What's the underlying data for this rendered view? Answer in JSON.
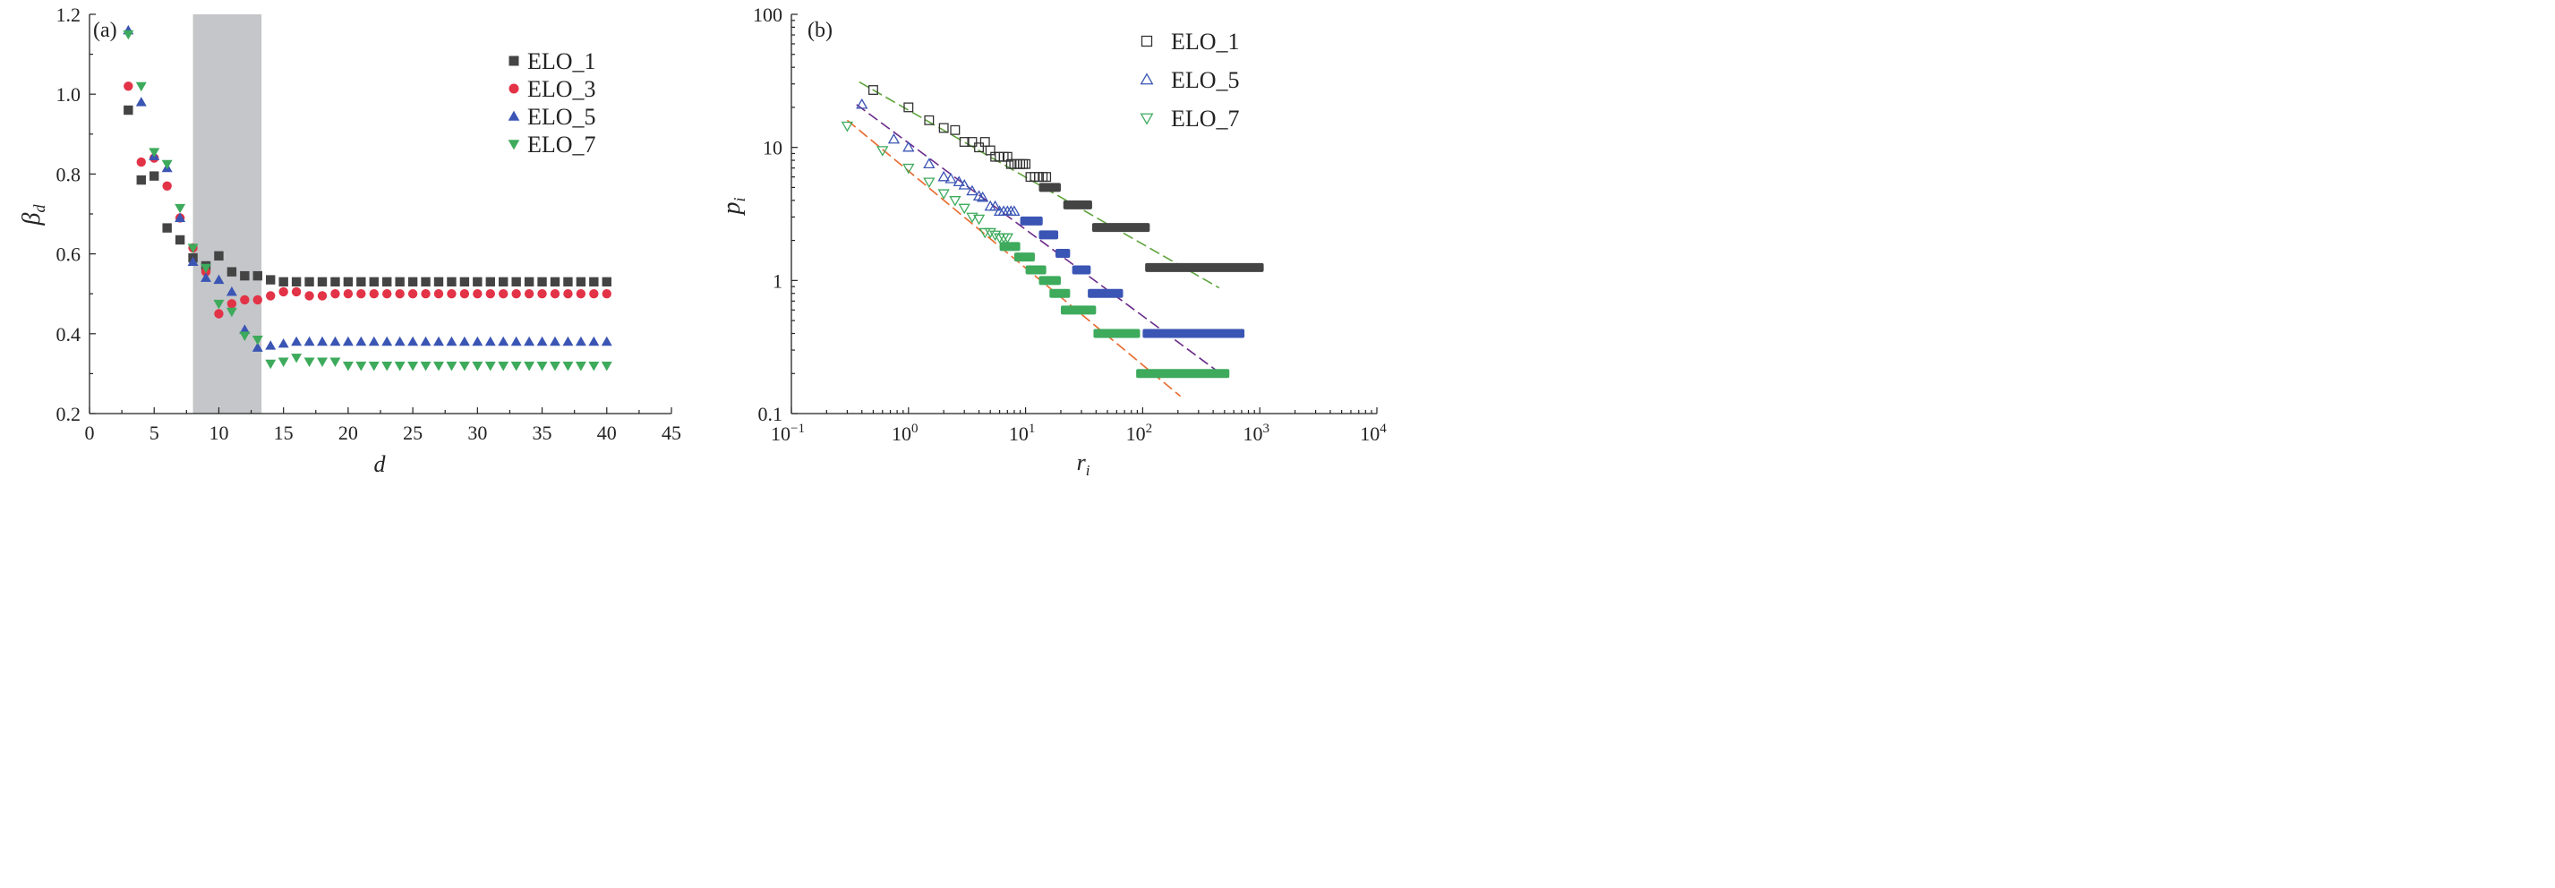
{
  "chart_data": [
    {
      "panel": "(a)",
      "type": "scatter",
      "xlabel": "d",
      "ylabel": "β_d",
      "ylabel_main": "β",
      "ylabel_sub": "d",
      "xlim": [
        0,
        45
      ],
      "ylim": [
        0.2,
        1.2
      ],
      "xticks": [
        "0",
        "5",
        "10",
        "15",
        "20",
        "25",
        "30",
        "35",
        "40",
        "45"
      ],
      "yticks": [
        "0.2",
        "0.4",
        "0.6",
        "0.8",
        "1.0",
        "1.2"
      ],
      "xtick_values": [
        0,
        5,
        10,
        15,
        20,
        25,
        30,
        35,
        40,
        45
      ],
      "ytick_values": [
        0.2,
        0.4,
        0.6,
        0.8,
        1.0,
        1.2
      ],
      "shaded_region": {
        "x": [
          8,
          13.3
        ],
        "color": "#c4c6c9"
      },
      "legend_position": "top-right",
      "grid": false,
      "series": [
        {
          "name": "ELO_1",
          "marker": "square",
          "color": "#444444",
          "x": [
            3,
            4,
            5,
            6,
            7,
            8,
            9,
            10,
            11,
            12,
            13,
            14,
            15,
            16,
            17,
            18,
            19,
            20,
            21,
            22,
            23,
            24,
            25,
            26,
            27,
            28,
            29,
            30,
            31,
            32,
            33,
            34,
            35,
            36,
            37,
            38,
            39,
            40
          ],
          "y": [
            0.96,
            0.785,
            0.795,
            0.665,
            0.635,
            0.59,
            0.57,
            0.595,
            0.555,
            0.545,
            0.545,
            0.535,
            0.53,
            0.53,
            0.53,
            0.53,
            0.53,
            0.53,
            0.53,
            0.53,
            0.53,
            0.53,
            0.53,
            0.53,
            0.53,
            0.53,
            0.53,
            0.53,
            0.53,
            0.53,
            0.53,
            0.53,
            0.53,
            0.53,
            0.53,
            0.53,
            0.53,
            0.53
          ]
        },
        {
          "name": "ELO_3",
          "marker": "circle",
          "color": "#e23347",
          "x": [
            3,
            4,
            5,
            6,
            7,
            8,
            9,
            10,
            11,
            12,
            13,
            14,
            15,
            16,
            17,
            18,
            19,
            20,
            21,
            22,
            23,
            24,
            25,
            26,
            27,
            28,
            29,
            30,
            31,
            32,
            33,
            34,
            35,
            36,
            37,
            38,
            39,
            40
          ],
          "y": [
            1.02,
            0.83,
            0.84,
            0.77,
            0.69,
            0.615,
            0.555,
            0.45,
            0.475,
            0.485,
            0.485,
            0.495,
            0.505,
            0.505,
            0.495,
            0.495,
            0.5,
            0.5,
            0.5,
            0.5,
            0.5,
            0.5,
            0.5,
            0.5,
            0.5,
            0.5,
            0.5,
            0.5,
            0.5,
            0.5,
            0.5,
            0.5,
            0.5,
            0.5,
            0.5,
            0.5,
            0.5,
            0.5
          ]
        },
        {
          "name": "ELO_5",
          "marker": "triangle-up",
          "color": "#3a55b4",
          "x": [
            3,
            4,
            5,
            6,
            7,
            8,
            9,
            10,
            11,
            12,
            13,
            14,
            15,
            16,
            17,
            18,
            19,
            20,
            21,
            22,
            23,
            24,
            25,
            26,
            27,
            28,
            29,
            30,
            31,
            32,
            33,
            34,
            35,
            36,
            37,
            38,
            39,
            40
          ],
          "y": [
            1.16,
            0.98,
            0.845,
            0.815,
            0.69,
            0.58,
            0.54,
            0.535,
            0.505,
            0.41,
            0.365,
            0.37,
            0.375,
            0.38,
            0.38,
            0.38,
            0.38,
            0.38,
            0.38,
            0.38,
            0.38,
            0.38,
            0.38,
            0.38,
            0.38,
            0.38,
            0.38,
            0.38,
            0.38,
            0.38,
            0.38,
            0.38,
            0.38,
            0.38,
            0.38,
            0.38,
            0.38,
            0.38
          ]
        },
        {
          "name": "ELO_7",
          "marker": "triangle-down",
          "color": "#3daa5c",
          "x": [
            3,
            4,
            5,
            6,
            7,
            8,
            9,
            10,
            11,
            12,
            13,
            14,
            15,
            16,
            17,
            18,
            19,
            20,
            21,
            22,
            23,
            24,
            25,
            26,
            27,
            28,
            29,
            30,
            31,
            32,
            33,
            34,
            35,
            36,
            37,
            38,
            39,
            40
          ],
          "y": [
            1.15,
            1.02,
            0.855,
            0.825,
            0.715,
            0.615,
            0.565,
            0.475,
            0.455,
            0.395,
            0.385,
            0.325,
            0.33,
            0.34,
            0.33,
            0.33,
            0.33,
            0.32,
            0.32,
            0.32,
            0.32,
            0.32,
            0.32,
            0.32,
            0.32,
            0.32,
            0.32,
            0.32,
            0.32,
            0.32,
            0.32,
            0.32,
            0.32,
            0.32,
            0.32,
            0.32,
            0.32,
            0.32
          ]
        }
      ]
    },
    {
      "panel": "(b)",
      "type": "scatter",
      "xscale": "log",
      "yscale": "log",
      "xlabel": "r_i",
      "xlabel_main": "r",
      "xlabel_sub": "i",
      "ylabel": "p_i",
      "ylabel_main": "p",
      "ylabel_sub": "i",
      "xlim": [
        0.1,
        10000
      ],
      "ylim": [
        0.1,
        100
      ],
      "xtick_values": [
        0.1,
        1,
        10,
        100,
        1000,
        10000
      ],
      "xticks": [
        {
          "base": "10",
          "exp": "−1"
        },
        {
          "base": "10",
          "exp": "0"
        },
        {
          "base": "10",
          "exp": "1"
        },
        {
          "base": "10",
          "exp": "2"
        },
        {
          "base": "10",
          "exp": "3"
        },
        {
          "base": "10",
          "exp": "4"
        }
      ],
      "ytick_values": [
        0.1,
        1,
        10,
        100
      ],
      "yticks": [
        "0.1",
        "1",
        "10",
        "100"
      ],
      "legend_position": "top-right",
      "grid": false,
      "series": [
        {
          "name": "ELO_1",
          "marker": "open-square",
          "color": "#333333",
          "x": [
            0.5,
            1.0,
            1.5,
            2.0,
            2.5,
            3.0,
            3.5,
            4.0,
            4.5,
            5.0,
            5.5,
            6.0,
            6.5,
            7.0,
            7.5,
            8.0,
            8.5,
            9.0,
            9.5,
            10,
            11,
            12,
            13,
            14,
            15
          ],
          "y": [
            27,
            20,
            16,
            14,
            13.5,
            11,
            11,
            10,
            11,
            9.5,
            8.5,
            8.5,
            8.5,
            8.5,
            7.5,
            7.5,
            7.5,
            7.5,
            7.5,
            7.5,
            6,
            6,
            6,
            6,
            6
          ],
          "bands": [
            {
              "x": [
                13,
                20
              ],
              "y": 5
            },
            {
              "x": [
                21,
                37
              ],
              "y": 3.7
            },
            {
              "x": [
                37,
                115
              ],
              "y": 2.5
            },
            {
              "x": [
                105,
                1080
              ],
              "y": 1.25
            }
          ],
          "fit": {
            "x": [
              0.38,
              450
            ],
            "y": [
              31,
              0.88
            ],
            "color": "#5fa33c"
          }
        },
        {
          "name": "ELO_5",
          "marker": "open-triangle-up",
          "color": "#3a55b4",
          "x": [
            0.4,
            0.75,
            1.0,
            1.5,
            2.0,
            2.3,
            2.7,
            3.0,
            3.5,
            4.0,
            4.3,
            5.0,
            5.5,
            6.0,
            6.5,
            7.0,
            7.5,
            8.0
          ],
          "y": [
            21,
            11.5,
            10,
            7.5,
            6,
            5.8,
            5.5,
            5.2,
            4.7,
            4.3,
            4.2,
            3.6,
            3.6,
            3.3,
            3.3,
            3.3,
            3.3,
            3.3
          ],
          "bands": [
            {
              "x": [
                9,
                14
              ],
              "y": 2.8
            },
            {
              "x": [
                13,
                19
              ],
              "y": 2.2
            },
            {
              "x": [
                18,
                24
              ],
              "y": 1.6
            },
            {
              "x": [
                25,
                36
              ],
              "y": 1.2
            },
            {
              "x": [
                34,
                68
              ],
              "y": 0.8
            },
            {
              "x": [
                100,
                740
              ],
              "y": 0.4
            }
          ],
          "fit": {
            "x": [
              0.36,
              500
            ],
            "y": [
              21,
              0.19
            ],
            "color": "#6a2a8a"
          }
        },
        {
          "name": "ELO_7",
          "marker": "open-triangle-down",
          "color": "#3daa5c",
          "x": [
            0.3,
            0.6,
            1.0,
            1.5,
            2.0,
            2.5,
            3.0,
            3.5,
            4.0,
            4.5,
            5.0,
            5.5,
            6.0,
            6.5,
            7.0
          ],
          "y": [
            14.5,
            9.5,
            7,
            5.5,
            4.5,
            4,
            3.5,
            3,
            2.9,
            2.3,
            2.3,
            2.2,
            2.1,
            2.1,
            2.1
          ],
          "bands": [
            {
              "x": [
                6,
                9
              ],
              "y": 1.8
            },
            {
              "x": [
                8,
                12
              ],
              "y": 1.5
            },
            {
              "x": [
                10,
                15
              ],
              "y": 1.2
            },
            {
              "x": [
                13,
                20
              ],
              "y": 1.0
            },
            {
              "x": [
                16,
                24
              ],
              "y": 0.8
            },
            {
              "x": [
                20,
                40
              ],
              "y": 0.6
            },
            {
              "x": [
                38,
                95
              ],
              "y": 0.4
            },
            {
              "x": [
                88,
                550
              ],
              "y": 0.2
            }
          ],
          "fit": {
            "x": [
              0.3,
              210
            ],
            "y": [
              16,
              0.135
            ],
            "color": "#e8682a"
          }
        }
      ]
    }
  ]
}
